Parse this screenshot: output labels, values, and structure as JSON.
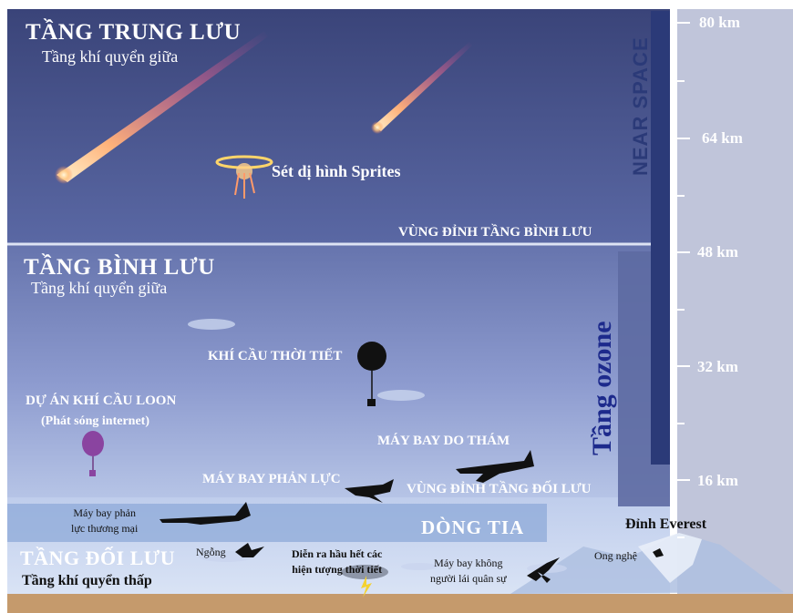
{
  "layers": {
    "mesosphere": {
      "title": "TẦNG TRUNG LƯU",
      "subtitle": "Tầng khí quyển giữa"
    },
    "stratosphere": {
      "title": "TẦNG BÌNH LƯU",
      "subtitle": "Tầng khí quyển giữa"
    },
    "troposphere": {
      "title": "TẦNG ĐỐI LƯU",
      "subtitle": "Tầng khí quyển thấp"
    }
  },
  "boundaries": {
    "stratopause": "VÙNG ĐỈNH TẦNG BÌNH LƯU",
    "tropopause": "VÙNG ĐỈNH TẦNG ĐỐI LƯU"
  },
  "phenomena": {
    "sprites": "Sét dị hình Sprites",
    "jet_stream": "DÒNG TIA",
    "weather_note": "Diễn ra hầu hết các\nhiện tượng thời tiết"
  },
  "objects": {
    "weather_balloon": "KHÍ CẦU THỜI TIẾT",
    "loon_title": "DỰ ÁN KHÍ CẦU LOON",
    "loon_sub": "(Phát sóng internet)",
    "spy_plane": "MÁY BAY DO THÁM",
    "jet_plane": "MÁY BAY PHẢN LỰC",
    "airliner": "Máy bay phản\nlực thương mại",
    "goose": "Ngỗng",
    "drone": "Máy bay không\nngười lái quân sự",
    "bumblebee": "Ong nghệ",
    "everest": "Đỉnh Everest"
  },
  "bands": {
    "near_space": "NEAR SPACE",
    "ozone": "Tầng ozone"
  },
  "altitude_scale": {
    "unit": "km",
    "ticks": [
      {
        "label": "80 km",
        "value": 80
      },
      {
        "label": "64 km",
        "value": 64
      },
      {
        "label": "48 km",
        "value": 48
      },
      {
        "label": "32 km",
        "value": 32
      },
      {
        "label": "16 km",
        "value": 16
      }
    ]
  },
  "colors": {
    "mesosphere_top": "#3a4479",
    "mesosphere_bottom": "#5a68a4",
    "stratosphere_top": "#6674ad",
    "stratosphere_bottom": "#b2c0e3",
    "troposphere": "#c6d4ee",
    "ground": "#c59a6c",
    "near_space_band": "#2b3a78",
    "ozone_band": "#5d6aa2",
    "ozone_text": "#1d2a8c",
    "loon_balloon": "#8a44a0",
    "silhouette": "#111111"
  }
}
